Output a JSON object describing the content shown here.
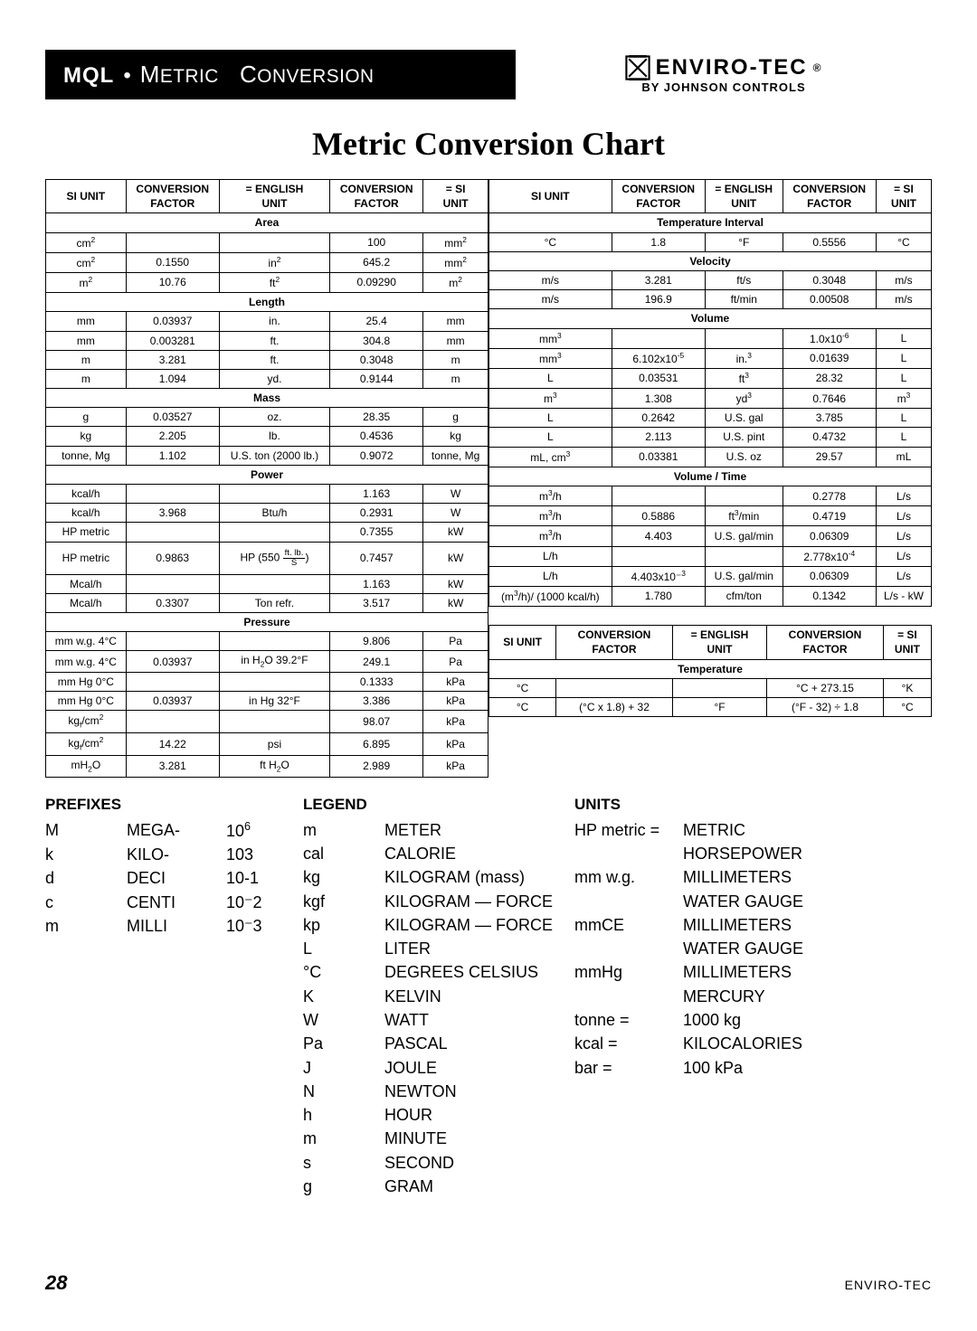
{
  "header": {
    "bar_prefix": "MQL",
    "bar_dot": "•",
    "bar_small_caps_a": "M",
    "bar_small_caps_rest_a": "ETRIC",
    "bar_small_caps_b": "C",
    "bar_small_caps_rest_b": "ONVERSION",
    "brand_main": "ENVIRO-TEC",
    "brand_reg": "®",
    "brand_sub": "BY JOHNSON CONTROLS"
  },
  "main_title": "Metric Conversion Chart",
  "col_headers": [
    "SI UNIT",
    "CONVERSION FACTOR",
    "= ENGLISH UNIT",
    "CONVERSION FACTOR",
    "= SI UNIT"
  ],
  "col_headers_r": [
    "SI UNIT",
    "CONVERSION FACTOR",
    "= ENGLISH UNIT",
    "CONVERSION FACTOR",
    "= SI UNIT"
  ],
  "left_sections": [
    {
      "title": "Area",
      "rows": [
        [
          "cm²",
          "",
          "",
          "100",
          "mm²"
        ],
        [
          "cm²",
          "0.1550",
          "in²",
          "645.2",
          "mm²"
        ],
        [
          "m²",
          "10.76",
          "ft²",
          "0.09290",
          "m²"
        ]
      ]
    },
    {
      "title": "Length",
      "rows": [
        [
          "mm",
          "0.03937",
          "in.",
          "25.4",
          "mm"
        ],
        [
          "mm",
          "0.003281",
          "ft.",
          "304.8",
          "mm"
        ],
        [
          "m",
          "3.281",
          "ft.",
          "0.3048",
          "m"
        ],
        [
          "m",
          "1.094",
          "yd.",
          "0.9144",
          "m"
        ]
      ]
    },
    {
      "title": "Mass",
      "rows": [
        [
          "g",
          "0.03527",
          "oz.",
          "28.35",
          "g"
        ],
        [
          "kg",
          "2.205",
          "lb.",
          "0.4536",
          "kg"
        ],
        [
          "tonne, Mg",
          "1.102",
          "U.S. ton (2000 lb.)",
          "0.9072",
          "tonne, Mg"
        ]
      ]
    },
    {
      "title": "Power",
      "rows": [
        [
          "kcal/h",
          "",
          "",
          "1.163",
          "W"
        ],
        [
          "kcal/h",
          "3.968",
          "Btu/h",
          "0.2931",
          "W"
        ],
        [
          "HP metric",
          "",
          "",
          "0.7355",
          "kW"
        ],
        [
          "HP metric",
          "0.9863",
          "HP (550 ft·lb/S)",
          "0.7457",
          "kW"
        ],
        [
          "Mcal/h",
          "",
          "",
          "1.163",
          "kW"
        ],
        [
          "Mcal/h",
          "0.3307",
          "Ton refr.",
          "3.517",
          "kW"
        ]
      ]
    },
    {
      "title": "Pressure",
      "rows": [
        [
          "mm w.g. 4°C",
          "",
          "",
          "9.806",
          "Pa"
        ],
        [
          "mm w.g. 4°C",
          "0.03937",
          "in H₂O 39.2°F",
          "249.1",
          "Pa"
        ],
        [
          "mm Hg 0°C",
          "",
          "",
          "0.1333",
          "kPa"
        ],
        [
          "mm Hg 0°C",
          "0.03937",
          "in Hg 32°F",
          "3.386",
          "kPa"
        ],
        [
          "kgf/cm²",
          "",
          "",
          "98.07",
          "kPa"
        ],
        [
          "kgf/cm²",
          "14.22",
          "psi",
          "6.895",
          "kPa"
        ],
        [
          "mH₂O",
          "3.281",
          "ft H₂O",
          "2.989",
          "kPa"
        ]
      ]
    }
  ],
  "right_sections": [
    {
      "title": "Temperature Interval",
      "rows": [
        [
          "°C",
          "1.8",
          "°F",
          "0.5556",
          "°C"
        ]
      ]
    },
    {
      "title": "Velocity",
      "rows": [
        [
          "m/s",
          "3.281",
          "ft/s",
          "0.3048",
          "m/s"
        ],
        [
          "m/s",
          "196.9",
          "ft/min",
          "0.00508",
          "m/s"
        ]
      ]
    },
    {
      "title": "Volume",
      "rows": [
        [
          "mm³",
          "",
          "",
          "1.0x10⁻⁶",
          "L"
        ],
        [
          "mm³",
          "6.102x10⁻⁵",
          "in.³",
          "0.01639",
          "L"
        ],
        [
          "L",
          "0.03531",
          "ft³",
          "28.32",
          "L"
        ],
        [
          "m³",
          "1.308",
          "yd³",
          "0.7646",
          "m³"
        ],
        [
          "L",
          "0.2642",
          "U.S. gal",
          "3.785",
          "L"
        ],
        [
          "L",
          "2.113",
          "U.S. pint",
          "0.4732",
          "L"
        ],
        [
          "mL, cm³",
          "0.03381",
          "U.S. oz",
          "29.57",
          "mL"
        ]
      ]
    },
    {
      "title": "Volume / Time",
      "rows": [
        [
          "m³/h",
          "",
          "",
          "0.2778",
          "L/s"
        ],
        [
          "m³/h",
          "0.5886",
          "ft³/min",
          "0.4719",
          "L/s"
        ],
        [
          "m³/h",
          "4.403",
          "U.S. gal/min",
          "0.06309",
          "L/s"
        ],
        [
          "L/h",
          "",
          "",
          "2.778x10⁻⁴",
          "L/s"
        ],
        [
          "L/h",
          "4.403x10⁻³",
          "U.S. gal/min",
          "0.06309",
          "L/s"
        ],
        [
          "(m³/h)/ (1000 kcal/h)",
          "1.780",
          "cfm/ton",
          "0.1342",
          "L/s - kW"
        ]
      ]
    }
  ],
  "temp_section": {
    "title": "Temperature",
    "rows": [
      [
        "°C",
        "",
        "",
        "°C + 273.15",
        "°K"
      ],
      [
        "°C",
        "(°C x 1.8) + 32",
        "°F",
        "(°F - 32) ÷ 1.8",
        "°C"
      ]
    ]
  },
  "prefixes": {
    "title": "PREFIXES",
    "rows": [
      [
        "M",
        "MEGA-",
        "10⁶"
      ],
      [
        "k",
        "KILO-",
        "10³"
      ],
      [
        "d",
        "DECI",
        "10⁻¹"
      ],
      [
        "c",
        "CENTI",
        "10⁻²"
      ],
      [
        "m",
        "MILLI",
        "10⁻³"
      ]
    ]
  },
  "legend": {
    "title": "LEGEND",
    "rows": [
      [
        "m",
        "METER"
      ],
      [
        "cal",
        "CALORIE"
      ],
      [
        "kg",
        "KILOGRAM (mass)"
      ],
      [
        "kgf",
        "KILOGRAM — FORCE"
      ],
      [
        "kp",
        "KILOGRAM — FORCE"
      ],
      [
        "L",
        "LITER"
      ],
      [
        "°C",
        "DEGREES CELSIUS"
      ],
      [
        "K",
        "KELVIN"
      ],
      [
        "W",
        "WATT"
      ],
      [
        "Pa",
        "PASCAL"
      ],
      [
        "J",
        "JOULE"
      ],
      [
        "N",
        "NEWTON"
      ],
      [
        "h",
        "HOUR"
      ],
      [
        "m",
        "MINUTE"
      ],
      [
        "s",
        "SECOND"
      ],
      [
        "g",
        "GRAM"
      ]
    ]
  },
  "units": {
    "title": "UNITS",
    "rows": [
      [
        "HP metric =",
        "METRIC"
      ],
      [
        "",
        "HORSEPOWER"
      ],
      [
        "mm w.g.",
        "MILLIMETERS"
      ],
      [
        "",
        "WATER GAUGE"
      ],
      [
        "mmCE",
        "MILLIMETERS"
      ],
      [
        "",
        "WATER GAUGE"
      ],
      [
        "mmHg",
        "MILLIMETERS"
      ],
      [
        "",
        "MERCURY"
      ],
      [
        "tonne =",
        "1000 kg"
      ],
      [
        "kcal =",
        "KILOCALORIES"
      ],
      [
        "bar =",
        "100 kPa"
      ]
    ]
  },
  "footer": {
    "page": "28",
    "brand": "ENVIRO-TEC"
  }
}
